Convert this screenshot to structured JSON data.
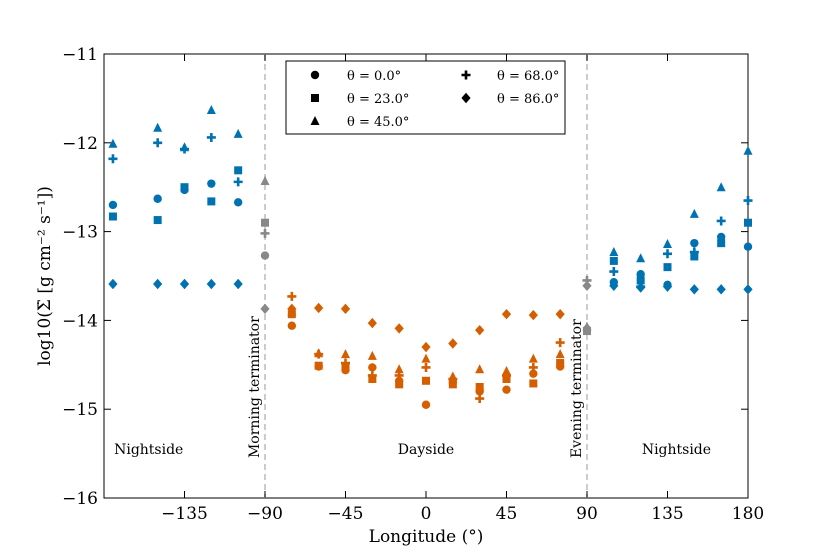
{
  "chart_data": {
    "type": "scatter",
    "xlabel": "Longitude (°)",
    "ylabel": "log10(Σ̇ [g cm⁻² s⁻¹])",
    "xlim": [
      -180,
      180
    ],
    "ylim": [
      -16,
      -11
    ],
    "xticks": [
      -135,
      -90,
      -45,
      0,
      45,
      90,
      135,
      180
    ],
    "xtick_labels": [
      "−135",
      "−90",
      "−45",
      "0",
      "45",
      "90",
      "135",
      "180"
    ],
    "yticks": [
      -16,
      -15,
      -14,
      -13,
      -12,
      -11
    ],
    "ytick_labels": [
      "−16",
      "−15",
      "−14",
      "−13",
      "−12",
      "−11"
    ],
    "region_labels": [
      {
        "text": "Nightside",
        "x": -155,
        "y": -15.45
      },
      {
        "text": "Dayside",
        "x": 0,
        "y": -15.45
      },
      {
        "text": "Nightside",
        "x": 140,
        "y": -15.45
      }
    ],
    "terminators": [
      {
        "x": -90,
        "label": "Morning terminator"
      },
      {
        "x": 90,
        "label": "Evening terminator"
      }
    ],
    "colors": {
      "nightside": "#0072B2",
      "dayside": "#D55E00",
      "terminator": "#888888",
      "terminator_line": "#cccccc"
    },
    "legend": {
      "position": "top-center",
      "entries": [
        {
          "label": "θ = 0.0°",
          "marker": "circle"
        },
        {
          "label": "θ = 68.0°",
          "marker": "plus"
        },
        {
          "label": "θ = 23.0°",
          "marker": "square"
        },
        {
          "label": "θ = 86.0°",
          "marker": "diamond"
        },
        {
          "label": "θ = 45.0°",
          "marker": "triangle"
        }
      ]
    },
    "series": [
      {
        "name": "θ = 0.0°",
        "marker": "circle",
        "points": [
          [
            -175,
            -12.7
          ],
          [
            -150,
            -12.63
          ],
          [
            -135,
            -12.53
          ],
          [
            -120,
            -12.46
          ],
          [
            -105,
            -12.67
          ],
          [
            -90,
            -13.27
          ],
          [
            -75,
            -14.06
          ],
          [
            -60,
            -14.52
          ],
          [
            -45,
            -14.56
          ],
          [
            -30,
            -14.53
          ],
          [
            -15,
            -14.68
          ],
          [
            0,
            -14.95
          ],
          [
            15,
            -14.7
          ],
          [
            30,
            -14.8
          ],
          [
            45,
            -14.78
          ],
          [
            60,
            -14.6
          ],
          [
            75,
            -14.52
          ],
          [
            90,
            -14.1
          ],
          [
            105,
            -13.57
          ],
          [
            120,
            -13.48
          ],
          [
            135,
            -13.6
          ],
          [
            150,
            -13.13
          ],
          [
            165,
            -13.06
          ],
          [
            180,
            -13.17
          ]
        ]
      },
      {
        "name": "θ = 23.0°",
        "marker": "square",
        "points": [
          [
            -175,
            -12.83
          ],
          [
            -150,
            -12.87
          ],
          [
            -135,
            -12.5
          ],
          [
            -120,
            -12.66
          ],
          [
            -105,
            -12.31
          ],
          [
            -90,
            -12.9
          ],
          [
            -75,
            -13.93
          ],
          [
            -60,
            -14.51
          ],
          [
            -45,
            -14.52
          ],
          [
            -30,
            -14.66
          ],
          [
            -15,
            -14.72
          ],
          [
            0,
            -14.68
          ],
          [
            15,
            -14.72
          ],
          [
            30,
            -14.75
          ],
          [
            45,
            -14.66
          ],
          [
            60,
            -14.71
          ],
          [
            75,
            -14.48
          ],
          [
            90,
            -14.12
          ],
          [
            105,
            -13.33
          ],
          [
            120,
            -13.55
          ],
          [
            135,
            -13.4
          ],
          [
            150,
            -13.28
          ],
          [
            165,
            -13.13
          ],
          [
            180,
            -12.9
          ]
        ]
      },
      {
        "name": "θ = 45.0°",
        "marker": "triangle",
        "points": [
          [
            -175,
            -12.01
          ],
          [
            -150,
            -11.83
          ],
          [
            -135,
            -12.05
          ],
          [
            -120,
            -11.63
          ],
          [
            -105,
            -11.9
          ],
          [
            -90,
            -12.43
          ],
          [
            -75,
            -13.9
          ],
          [
            -60,
            -14.37
          ],
          [
            -45,
            -14.38
          ],
          [
            -30,
            -14.4
          ],
          [
            -15,
            -14.55
          ],
          [
            0,
            -14.43
          ],
          [
            15,
            -14.63
          ],
          [
            30,
            -14.55
          ],
          [
            45,
            -14.57
          ],
          [
            60,
            -14.43
          ],
          [
            75,
            -14.38
          ],
          [
            90,
            -14.07
          ],
          [
            105,
            -13.23
          ],
          [
            120,
            -13.3
          ],
          [
            135,
            -13.14
          ],
          [
            150,
            -12.8
          ],
          [
            165,
            -12.5
          ],
          [
            180,
            -12.09
          ]
        ]
      },
      {
        "name": "θ = 68.0°",
        "marker": "plus",
        "points": [
          [
            -175,
            -12.18
          ],
          [
            -150,
            -12.0
          ],
          [
            -135,
            -12.07
          ],
          [
            -120,
            -11.94
          ],
          [
            -105,
            -12.44
          ],
          [
            -90,
            -13.02
          ],
          [
            -75,
            -13.73
          ],
          [
            -60,
            -14.38
          ],
          [
            -45,
            -14.48
          ],
          [
            -30,
            -14.62
          ],
          [
            -15,
            -14.62
          ],
          [
            0,
            -14.53
          ],
          [
            15,
            -14.66
          ],
          [
            30,
            -14.88
          ],
          [
            45,
            -14.62
          ],
          [
            60,
            -14.53
          ],
          [
            75,
            -14.25
          ],
          [
            90,
            -13.55
          ],
          [
            105,
            -13.45
          ],
          [
            120,
            -13.62
          ],
          [
            135,
            -13.25
          ],
          [
            150,
            -13.23
          ],
          [
            165,
            -12.88
          ],
          [
            180,
            -12.65
          ]
        ]
      },
      {
        "name": "θ = 86.0°",
        "marker": "diamond",
        "points": [
          [
            -175,
            -13.59
          ],
          [
            -150,
            -13.59
          ],
          [
            -135,
            -13.59
          ],
          [
            -120,
            -13.59
          ],
          [
            -105,
            -13.59
          ],
          [
            -90,
            -13.87
          ],
          [
            -75,
            -13.87
          ],
          [
            -60,
            -13.86
          ],
          [
            -45,
            -13.87
          ],
          [
            -30,
            -14.03
          ],
          [
            -15,
            -14.09
          ],
          [
            0,
            -14.3
          ],
          [
            15,
            -14.26
          ],
          [
            30,
            -14.11
          ],
          [
            45,
            -13.93
          ],
          [
            60,
            -13.94
          ],
          [
            75,
            -13.93
          ],
          [
            90,
            -13.61
          ],
          [
            105,
            -13.61
          ],
          [
            120,
            -13.63
          ],
          [
            135,
            -13.62
          ],
          [
            150,
            -13.65
          ],
          [
            165,
            -13.65
          ],
          [
            180,
            -13.65
          ]
        ]
      }
    ]
  }
}
